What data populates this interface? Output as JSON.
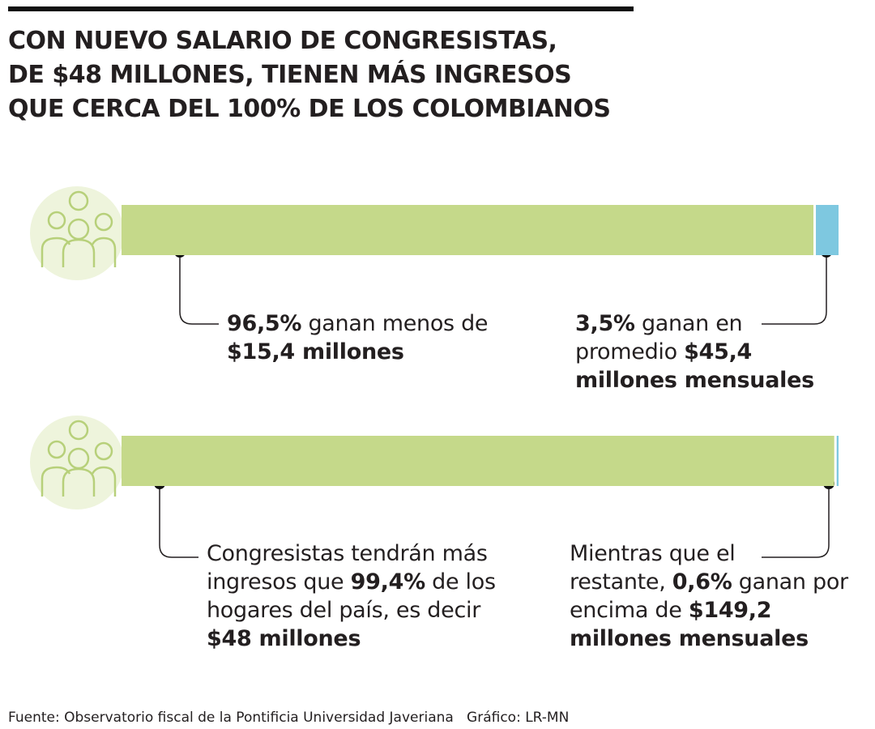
{
  "title": [
    "CON NUEVO SALARIO DE CONGRESISTAS,",
    "DE $48 MILLONES, TIENEN MÁS INGRESOS",
    "QUE CERCA DEL 100% DE LOS COLOMBIANOS"
  ],
  "chart_data": [
    {
      "type": "bar",
      "orientation": "horizontal",
      "stacked": true,
      "xlim": [
        0,
        100
      ],
      "series": [
        {
          "color": "#c5d98a",
          "values": [
            96.5
          ]
        },
        {
          "color": "#7ec8e0",
          "values": [
            3.5
          ]
        }
      ],
      "annotations": [
        [
          [
            {
              "text": "96,5%",
              "bold": true
            },
            {
              "text": " ganan menos de"
            }
          ],
          [
            {
              "text": "$15,4 millones",
              "bold": true
            }
          ]
        ],
        [
          [
            {
              "text": "3,5%",
              "bold": true
            },
            {
              "text": " ganan en"
            }
          ],
          [
            {
              "text": "promedio "
            },
            {
              "text": "$45,4",
              "bold": true
            }
          ],
          [
            {
              "text": "millones mensuales",
              "bold": true
            }
          ]
        ]
      ]
    },
    {
      "type": "bar",
      "orientation": "horizontal",
      "stacked": true,
      "xlim": [
        0,
        100
      ],
      "series": [
        {
          "color": "#c5d98a",
          "values": [
            99.4
          ]
        },
        {
          "color": "#7ec8e0",
          "values": [
            0.6
          ]
        }
      ],
      "annotations": [
        [
          [
            {
              "text": "Congresistas tendrán más"
            }
          ],
          [
            {
              "text": "ingresos que "
            },
            {
              "text": "99,4%",
              "bold": true
            },
            {
              "text": " de los"
            }
          ],
          [
            {
              "text": "hogares del país, es decir"
            }
          ],
          [
            {
              "text": "$48 millones",
              "bold": true
            }
          ]
        ],
        [
          [
            {
              "text": "Mientras que el"
            }
          ],
          [
            {
              "text": "restante, "
            },
            {
              "text": "0,6%",
              "bold": true
            },
            {
              "text": " ganan por"
            }
          ],
          [
            {
              "text": "encima de "
            },
            {
              "text": "$149,2",
              "bold": true
            }
          ],
          [
            {
              "text": "millones mensuales",
              "bold": true
            }
          ]
        ]
      ]
    }
  ],
  "source": "Fuente: Observatorio fiscal de la Pontificia Universidad Javeriana   Gráfico: LR-MN"
}
